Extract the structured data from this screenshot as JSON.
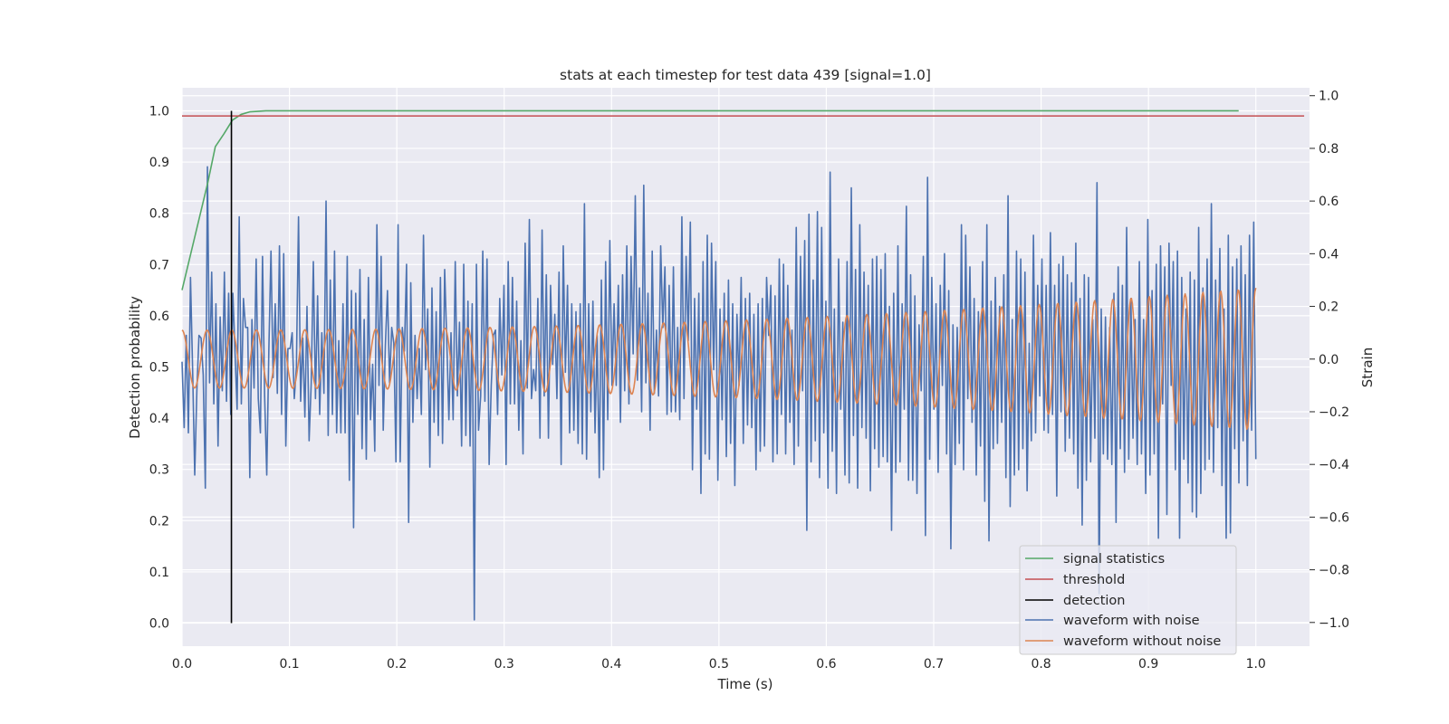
{
  "chart_data": {
    "type": "line",
    "title": "stats at each timestep for test data 439 [signal=1.0]",
    "xlabel": "Time (s)",
    "ylabel_left": "Detection probability",
    "ylabel_right": "Strain",
    "xlim": [
      0.0,
      1.05
    ],
    "ylim_left": [
      -0.045,
      1.045
    ],
    "ylim_right": [
      -1.09,
      1.03
    ],
    "x_ticks": [
      "0.0",
      "0.1",
      "0.2",
      "0.3",
      "0.4",
      "0.5",
      "0.6",
      "0.7",
      "0.8",
      "0.9",
      "1.0"
    ],
    "y_ticks_left": [
      "0.0",
      "0.1",
      "0.2",
      "0.3",
      "0.4",
      "0.5",
      "0.6",
      "0.7",
      "0.8",
      "0.9",
      "1.0"
    ],
    "y_ticks_right": [
      "−1.0",
      "−0.8",
      "−0.6",
      "−0.4",
      "−0.2",
      "0.0",
      "0.2",
      "0.4",
      "0.6",
      "0.8",
      "1.0"
    ],
    "grid": true,
    "legend_position": "lower-right",
    "series": [
      {
        "name": "signal statistics",
        "axis": "left",
        "color": "#55a868",
        "x": [
          0.0,
          0.008,
          0.016,
          0.024,
          0.031,
          0.039,
          0.047,
          0.055,
          0.063,
          0.07,
          0.078,
          0.086,
          0.1,
          0.15,
          0.2,
          0.3,
          0.4,
          0.5,
          0.6,
          0.7,
          0.8,
          0.9,
          0.984
        ],
        "y": [
          0.65,
          0.72,
          0.79,
          0.86,
          0.93,
          0.955,
          0.982,
          0.993,
          0.998,
          0.999,
          1.0,
          1.0,
          1.0,
          1.0,
          1.0,
          1.0,
          1.0,
          1.0,
          1.0,
          1.0,
          1.0,
          1.0,
          1.0
        ]
      },
      {
        "name": "threshold",
        "axis": "left",
        "color": "#c44e52",
        "x": [
          0.0,
          1.045
        ],
        "y": [
          0.99,
          0.99
        ]
      },
      {
        "name": "detection",
        "axis": "left",
        "color": "#000000",
        "x": [
          0.046,
          0.046
        ],
        "y": [
          0.0,
          1.0
        ]
      },
      {
        "name": "waveform with noise",
        "axis": "right",
        "color": "#4c72b0",
        "x_start": 0.0,
        "x_end": 1.0,
        "y": [
          -0.01,
          -0.26,
          0.09,
          -0.28,
          0.31,
          -0.04,
          -0.44,
          -0.12,
          0.09,
          0.08,
          -0.06,
          -0.49,
          0.73,
          -0.09,
          0.33,
          -0.17,
          0.21,
          -0.33,
          0.16,
          -0.12,
          0.33,
          -0.16,
          0.25,
          -0.21,
          0.25,
          0.03,
          -0.19,
          0.54,
          -0.17,
          0.23,
          0.12,
          0.12,
          -0.45,
          0.15,
          -0.11,
          0.38,
          -0.15,
          -0.28,
          0.39,
          -0.14,
          -0.44,
          0.04,
          0.41,
          -0.07,
          0.21,
          -0.13,
          0.43,
          -0.21,
          0.4,
          -0.33,
          0.04,
          0.04,
          0.1,
          -0.15,
          -0.03,
          0.54,
          -0.16,
          0.08,
          -0.22,
          0.2,
          -0.31,
          -0.09,
          0.37,
          -0.15,
          0.24,
          -0.21,
          0.1,
          -0.13,
          0.6,
          -0.29,
          0.3,
          -0.21,
          0.41,
          -0.28,
          0.07,
          -0.28,
          0.21,
          -0.28,
          0.39,
          -0.46,
          0.26,
          -0.64,
          0.25,
          -0.21,
          0.34,
          -0.34,
          0.15,
          -0.38,
          0.31,
          -0.23,
          -0.02,
          -0.35,
          0.51,
          -0.1,
          0.39,
          -0.27,
          0.05,
          0.26,
          -0.09,
          0.12,
          0.06,
          -0.39,
          0.51,
          -0.39,
          0.12,
          0.03,
          0.36,
          -0.62,
          0.29,
          -0.24,
          0.09,
          -0.15,
          0.04,
          -0.21,
          0.47,
          -0.04,
          0.19,
          -0.41,
          0.27,
          -0.24,
          0.18,
          -0.29,
          0.31,
          -0.32,
          0.34,
          0.07,
          -0.23,
          0.1,
          -0.23,
          0.37,
          -0.14,
          0.14,
          -0.33,
          0.36,
          -0.29,
          0.22,
          -0.33,
          0.21,
          -0.99,
          0.36,
          -0.27,
          -0.14,
          0.41,
          -0.16,
          0.38,
          -0.4,
          -0.1,
          0.09,
          0.11,
          -0.21,
          0.23,
          -0.06,
          0.28,
          -0.4,
          0.37,
          -0.17,
          0.31,
          -0.17,
          0.22,
          -0.27,
          0.07,
          -0.36,
          0.44,
          -0.11,
          0.53,
          -0.15,
          -0.04,
          -0.12,
          0.23,
          -0.3,
          0.49,
          -0.14,
          0.32,
          -0.3,
          0.28,
          -0.02,
          0.17,
          -0.15,
          0.33,
          -0.4,
          0.43,
          -0.05,
          0.28,
          -0.28,
          0.21,
          -0.27,
          0.18,
          -0.32,
          0.21,
          -0.36,
          0.59,
          -0.38,
          0.21,
          -0.2,
          0.22,
          -0.28,
          0.09,
          -0.45,
          0.3,
          -0.42,
          0.37,
          -0.23,
          0.45,
          -0.1,
          0.21,
          -0.1,
          0.28,
          -0.24,
          0.32,
          -0.12,
          0.43,
          -0.17,
          0.39,
          0.02,
          0.62,
          -0.08,
          0.27,
          -0.2,
          0.66,
          -0.09,
          0.25,
          -0.27,
          0.41,
          -0.13,
          0.11,
          -0.14,
          0.43,
          0.12,
          0.35,
          -0.21,
          0.28,
          -0.2,
          0.35,
          -0.2,
          0.12,
          -0.23,
          0.54,
          -0.15,
          0.39,
          0.07,
          0.52,
          -0.42,
          0.23,
          -0.19,
          0.25,
          -0.51,
          0.37,
          -0.36,
          0.47,
          -0.38,
          0.44,
          -0.04,
          0.37,
          -0.46,
          0.19,
          -0.23,
          0.25,
          -0.37,
          0.3,
          -0.32,
          0.21,
          -0.48,
          0.17,
          -0.1,
          0.31,
          -0.32,
          0.23,
          -0.25,
          0.25,
          -0.26,
          0.17,
          -0.42,
          0.21,
          -0.35,
          0.23,
          -0.33,
          0.31,
          0.09,
          0.28,
          -0.39,
          0.24,
          -0.36,
          0.38,
          -0.21,
          0.36,
          -0.36,
          0.28,
          -0.24,
          0.11,
          -0.4,
          0.5,
          -0.33,
          0.39,
          -0.12,
          0.45,
          -0.65,
          0.55,
          -0.39,
          0.3,
          -0.31,
          0.56,
          -0.45,
          0.5,
          -0.28,
          0.22,
          -0.49,
          0.71,
          -0.35,
          0.19,
          -0.51,
          0.38,
          -0.19,
          0.14,
          -0.44,
          0.37,
          -0.47,
          0.65,
          -0.29,
          0.34,
          -0.49,
          0.51,
          -0.26,
          0.33,
          -0.3,
          0.28,
          -0.5,
          0.38,
          -0.34,
          0.39,
          -0.41,
          0.34,
          -0.37,
          0.4,
          -0.39,
          0.2,
          -0.65,
          0.25,
          -0.43,
          0.43,
          -0.39,
          0.21,
          -0.19,
          0.58,
          -0.46,
          0.32,
          -0.46,
          0.24,
          -0.51,
          0.13,
          -0.12,
          0.39,
          -0.67,
          0.69,
          -0.38,
          0.31,
          -0.19,
          0.21,
          -0.43,
          0.28,
          -0.1,
          0.4,
          -0.36,
          0.26,
          -0.72,
          0.13,
          -0.4,
          0.12,
          -0.32,
          0.51,
          -0.42,
          0.47,
          -0.15,
          0.35,
          -0.24,
          0.23,
          -0.44,
          0.18,
          -0.33,
          0.37,
          -0.54,
          0.51,
          -0.69,
          0.22,
          -0.34,
          0.31,
          -0.32,
          0.2,
          -0.24,
          0.32,
          -0.45,
          0.62,
          -0.56,
          0.15,
          -0.44,
          0.41,
          -0.42,
          0.38,
          -0.34,
          0.33,
          -0.5,
          0.06,
          -0.31,
          0.47,
          -0.28,
          0.28,
          -0.14,
          0.38,
          -0.27,
          0.28,
          -0.28,
          0.48,
          -0.21,
          0.28,
          -0.52,
          0.36,
          -0.2,
          0.39,
          -0.35,
          0.32,
          -0.3,
          0.29,
          -0.36,
          0.44,
          -0.49,
          0.23,
          -0.63,
          0.32,
          -0.46,
          0.31,
          -0.39,
          0.15,
          -0.3,
          0.67,
          -0.89,
          0.19,
          -0.36,
          0.16,
          -0.38,
          0.12,
          -0.4,
          0.25,
          -0.62,
          0.35,
          -0.34,
          0.28,
          -0.43,
          0.5,
          -0.38,
          0.23,
          -0.3,
          0.15,
          -0.4,
          0.37,
          -0.36,
          0.15,
          -0.51,
          0.53,
          -0.44,
          0.26,
          -0.36,
          0.36,
          -0.68,
          0.43,
          -0.17,
          0.35,
          -0.59,
          0.44,
          -0.1,
          0.37,
          -0.42,
          0.41,
          -0.68,
          0.31,
          -0.38,
          0.19,
          -0.47,
          0.33,
          -0.58,
          0.3,
          -0.6,
          0.5,
          -0.51,
          0.27,
          -0.42,
          0.38,
          -0.38,
          0.59,
          -0.43,
          0.3,
          -0.26,
          0.42,
          -0.48,
          0.19,
          -0.68,
          0.47,
          -0.66,
          0.35,
          -0.34,
          0.38,
          -0.47,
          0.43,
          -0.31,
          0.32,
          -0.48,
          0.47,
          -0.27,
          0.52,
          -0.38
        ]
      },
      {
        "name": "waveform without noise",
        "axis": "right",
        "color": "#dd8452",
        "x_start": 0.0,
        "x_end": 1.0,
        "amplitude_start": 0.11,
        "amplitude_end": 0.27,
        "cycles": 52
      }
    ]
  }
}
